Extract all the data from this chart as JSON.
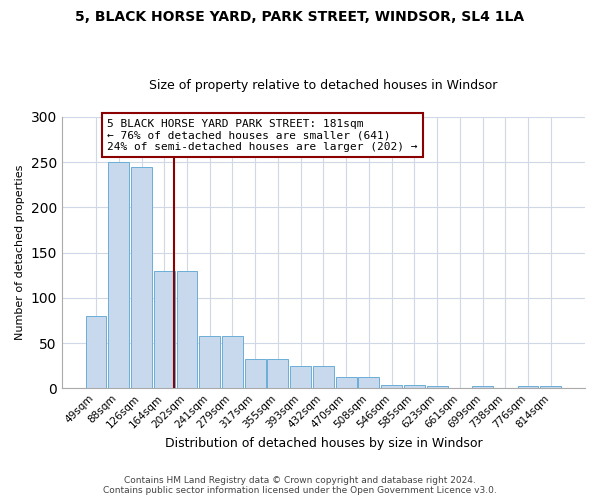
{
  "title1": "5, BLACK HORSE YARD, PARK STREET, WINDSOR, SL4 1LA",
  "title2": "Size of property relative to detached houses in Windsor",
  "xlabel": "Distribution of detached houses by size in Windsor",
  "ylabel": "Number of detached properties",
  "categories": [
    "49sqm",
    "88sqm",
    "126sqm",
    "164sqm",
    "202sqm",
    "241sqm",
    "279sqm",
    "317sqm",
    "355sqm",
    "393sqm",
    "432sqm",
    "470sqm",
    "508sqm",
    "546sqm",
    "585sqm",
    "623sqm",
    "661sqm",
    "699sqm",
    "738sqm",
    "776sqm",
    "814sqm"
  ],
  "bar_heights": [
    80,
    250,
    245,
    130,
    130,
    58,
    58,
    32,
    32,
    25,
    25,
    13,
    13,
    4,
    4,
    3,
    0,
    3,
    0,
    3,
    3
  ],
  "bar_color": "#c8d9ee",
  "bar_edgecolor": "#6aaed6",
  "vline_color": "#8b0000",
  "annotation_line1": "5 BLACK HORSE YARD PARK STREET: 181sqm",
  "annotation_line2": "← 76% of detached houses are smaller (641)",
  "annotation_line3": "24% of semi-detached houses are larger (202) →",
  "annotation_box_edgecolor": "#8b0000",
  "ylim": [
    0,
    300
  ],
  "yticks": [
    0,
    50,
    100,
    150,
    200,
    250,
    300
  ],
  "footer": "Contains HM Land Registry data © Crown copyright and database right 2024.\nContains public sector information licensed under the Open Government Licence v3.0.",
  "bg_color": "#ffffff",
  "title1_fontsize": 10,
  "title2_fontsize": 9,
  "xlabel_fontsize": 9,
  "ylabel_fontsize": 8,
  "tick_fontsize": 7.5,
  "footer_fontsize": 6.5
}
